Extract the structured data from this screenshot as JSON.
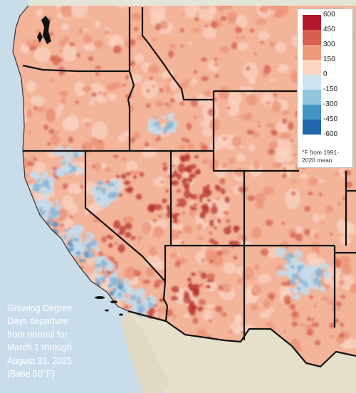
{
  "caption": {
    "lines": [
      "Growing Degree",
      "Days departure",
      "from normal for",
      "March 1 through",
      "August 31, 2025",
      "(Base 50°F)"
    ]
  },
  "legend": {
    "items": [
      {
        "label": "600",
        "color": "#b2182b"
      },
      {
        "label": "450",
        "color": "#d6604d"
      },
      {
        "label": "300",
        "color": "#f09a7c"
      },
      {
        "label": "150",
        "color": "#fcd5c0"
      },
      {
        "label": "0",
        "color": "#ffffff"
      },
      {
        "label": "-150",
        "color": "#cfe3f0"
      },
      {
        "label": "-300",
        "color": "#92c5de"
      },
      {
        "label": "-450",
        "color": "#4393c3"
      },
      {
        "label": "-600",
        "color": "#2166ac"
      }
    ],
    "note": "°F from 1991-2020 mean"
  },
  "map_colors": {
    "ocean": "#c9dcea",
    "land_outside": "#e6e2cf",
    "warm_base": "#f3b49a",
    "warm_light": "#fad3c1",
    "warm_mid": "#ec9478",
    "warm_dark": "#d6604d",
    "warm_darkest": "#b8342f",
    "cool_light": "#c4dcec",
    "cool_mid": "#86b8d8",
    "cool_dark": "#4f8fc3",
    "border": "#111111"
  }
}
